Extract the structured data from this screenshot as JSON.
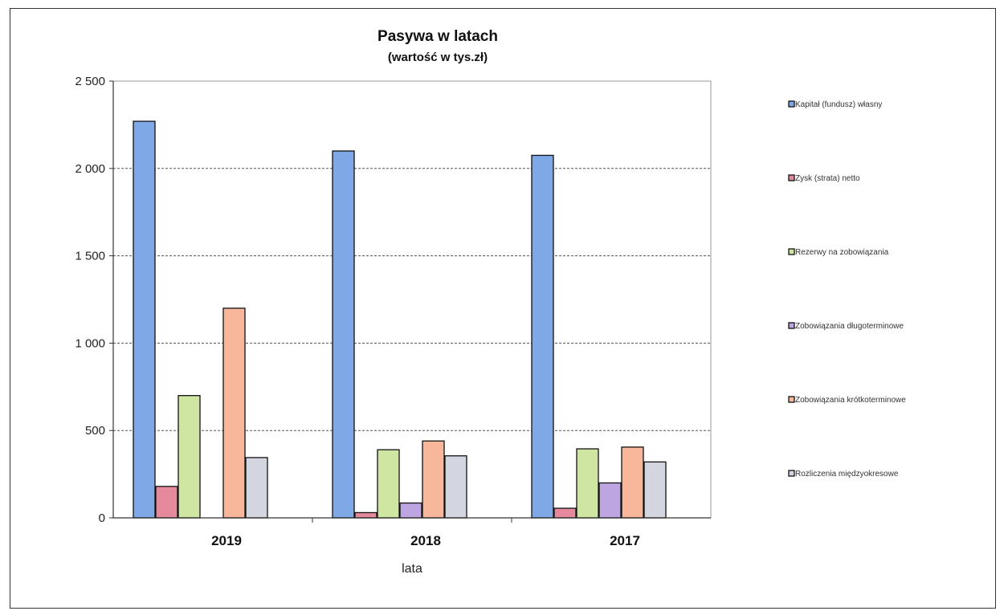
{
  "chart_data": {
    "type": "bar",
    "title": "Pasywa w latach",
    "subtitle": "(wartość w tys.zł)",
    "xlabel": "lata",
    "ylabel": "",
    "ylim": [
      0,
      2500
    ],
    "yticks": [
      0,
      500,
      1000,
      1500,
      2000,
      2500
    ],
    "ytick_labels": [
      "0",
      "500",
      "1 000",
      "1 500",
      "2 000",
      "2 500"
    ],
    "grid": true,
    "legend_position": "right",
    "categories": [
      "2019",
      "2018",
      "2017"
    ],
    "series": [
      {
        "name": "Kapitał (fundusz) własny",
        "values": [
          2270,
          2100,
          2075
        ],
        "color": "#7fa8e6"
      },
      {
        "name": "Zysk (strata) netto",
        "values": [
          180,
          30,
          55
        ],
        "color": "#e5899c"
      },
      {
        "name": "Rezerwy na zobowiązania",
        "values": [
          700,
          390,
          395
        ],
        "color": "#cfe6a3"
      },
      {
        "name": "Zobowiązania długoterminowe",
        "values": [
          0,
          85,
          200
        ],
        "color": "#bca5e0"
      },
      {
        "name": "Zobowiązania krótkoterminowe",
        "values": [
          1200,
          440,
          405
        ],
        "color": "#f8b79a"
      },
      {
        "name": "Rozliczenia międzyokresowe",
        "values": [
          345,
          355,
          320
        ],
        "color": "#d3d6df"
      }
    ]
  }
}
